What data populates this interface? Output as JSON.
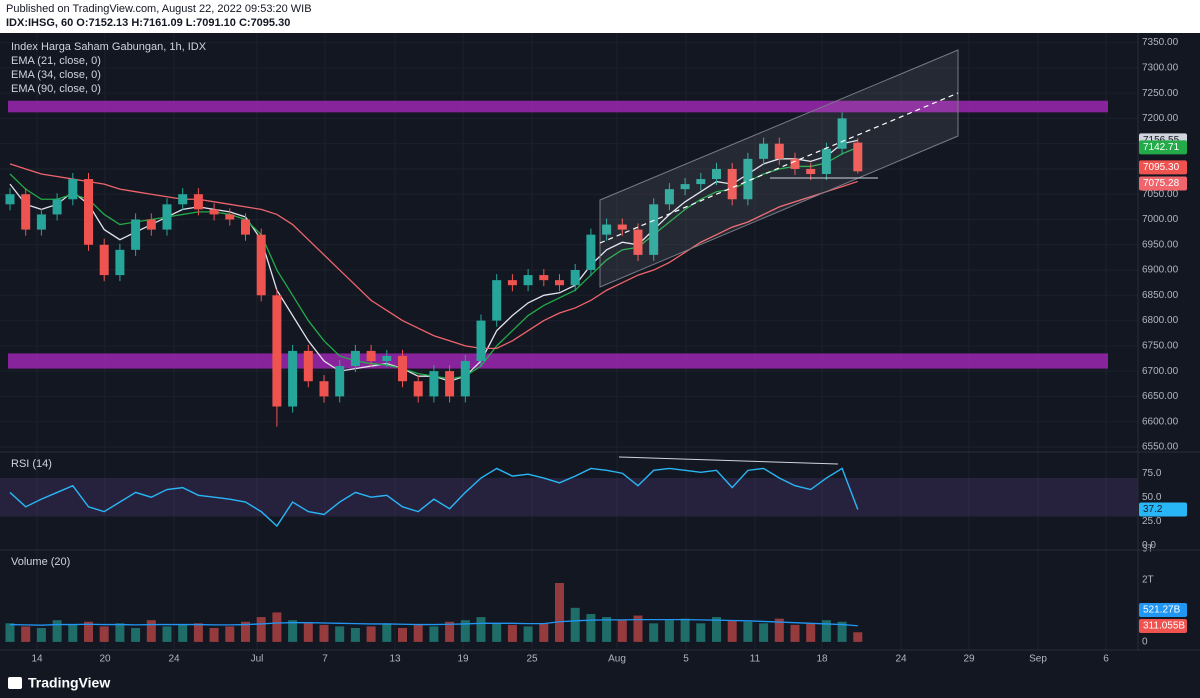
{
  "header": {
    "published": "Published on TradingView.com, August 22, 2022 09:53:20 WIB",
    "symbol_line": "IDX:IHSG, 60 O:7152.13 H:7161.09 L:7091.10 C:7095.30"
  },
  "time_axis": {
    "labels": [
      "14",
      "20",
      "24",
      "Jul",
      "7",
      "13",
      "19",
      "25",
      "Aug",
      "5",
      "11",
      "18",
      "24",
      "29",
      "Sep",
      "6"
    ]
  },
  "footer": "TradingView",
  "chart_data": [
    {
      "type": "candlestick",
      "title": "Index Harga Saham Gabungan, 1h, IDX",
      "up_color": "#26a69a",
      "down_color": "#ef5350",
      "open": [
        7030,
        7050,
        6980,
        7010,
        7040,
        7080,
        6950,
        6890,
        6940,
        7000,
        6980,
        7030,
        7050,
        7020,
        7010,
        7000,
        6970,
        6850,
        6630,
        6740,
        6680,
        6650,
        6710,
        6740,
        6720,
        6730,
        6680,
        6650,
        6700,
        6650,
        6720,
        6800,
        6880,
        6870,
        6890,
        6880,
        6870,
        6900,
        6970,
        6990,
        6980,
        6930,
        7030,
        7060,
        7070,
        7080,
        7100,
        7040,
        7120,
        7150,
        7120,
        7100,
        7090,
        7140,
        7152.13
      ],
      "high": [
        7062,
        7062,
        7022,
        7052,
        7092,
        7092,
        6962,
        6952,
        7012,
        7012,
        7042,
        7062,
        7062,
        7032,
        7022,
        7012,
        6982,
        6862,
        6752,
        6752,
        6692,
        6722,
        6752,
        6752,
        6742,
        6742,
        6692,
        6712,
        6712,
        6732,
        6812,
        6892,
        6892,
        6902,
        6902,
        6892,
        6912,
        6982,
        7002,
        7002,
        6992,
        7042,
        7072,
        7082,
        7092,
        7112,
        7112,
        7132,
        7162,
        7162,
        7132,
        7112,
        7152,
        7212,
        7161.09
      ],
      "low": [
        7018,
        6968,
        6968,
        6998,
        7028,
        6938,
        6878,
        6878,
        6928,
        6968,
        6968,
        7018,
        7008,
        6998,
        6988,
        6958,
        6838,
        6590,
        6618,
        6668,
        6638,
        6638,
        6698,
        6708,
        6708,
        6668,
        6638,
        6638,
        6638,
        6638,
        6708,
        6788,
        6858,
        6858,
        6868,
        6858,
        6858,
        6888,
        6958,
        6968,
        6918,
        6918,
        7018,
        7048,
        7058,
        7068,
        7028,
        7028,
        7108,
        7108,
        7088,
        7078,
        7078,
        7128,
        7091.1
      ],
      "close": [
        7050,
        6980,
        7010,
        7040,
        7080,
        6950,
        6890,
        6940,
        7000,
        6980,
        7030,
        7050,
        7020,
        7010,
        7000,
        6970,
        6850,
        6630,
        6740,
        6680,
        6650,
        6710,
        6740,
        6720,
        6730,
        6680,
        6650,
        6700,
        6650,
        6720,
        6800,
        6880,
        6870,
        6890,
        6880,
        6870,
        6900,
        6970,
        6990,
        6980,
        6930,
        7030,
        7060,
        7070,
        7080,
        7100,
        7040,
        7120,
        7150,
        7120,
        7100,
        7090,
        7140,
        7200,
        7095.3
      ],
      "close_label": "7095.30",
      "series": [
        {
          "name": "EMA (21, close, 0)",
          "color": "#e0e3eb",
          "values": [
            7070,
            7030,
            7020,
            7030,
            7055,
            7030,
            6980,
            6960,
            6975,
            6990,
            7005,
            7020,
            7025,
            7020,
            7015,
            7005,
            6960,
            6860,
            6810,
            6760,
            6720,
            6700,
            6705,
            6710,
            6715,
            6705,
            6690,
            6690,
            6680,
            6690,
            6720,
            6780,
            6810,
            6835,
            6850,
            6855,
            6870,
            6910,
            6940,
            6955,
            6950,
            6980,
            7010,
            7035,
            7055,
            7075,
            7070,
            7090,
            7110,
            7120,
            7120,
            7115,
            7125,
            7150,
            7156.55
          ]
        },
        {
          "name": "EMA (34, close, 0)",
          "color": "#22ab48",
          "values": [
            7090,
            7060,
            7040,
            7040,
            7050,
            7040,
            7010,
            6990,
            6995,
            7000,
            7005,
            7010,
            7015,
            7015,
            7010,
            7000,
            6970,
            6900,
            6850,
            6800,
            6760,
            6730,
            6720,
            6715,
            6712,
            6705,
            6695,
            6690,
            6685,
            6690,
            6710,
            6750,
            6780,
            6810,
            6830,
            6845,
            6860,
            6890,
            6920,
            6940,
            6945,
            6970,
            6995,
            7020,
            7040,
            7055,
            7060,
            7075,
            7090,
            7100,
            7105,
            7105,
            7112,
            7130,
            7142.71
          ]
        },
        {
          "name": "EMA (90, close, 0)",
          "color": "#f0646c",
          "values": [
            7110,
            7100,
            7090,
            7085,
            7080,
            7075,
            7070,
            7060,
            7055,
            7050,
            7045,
            7040,
            7040,
            7035,
            7030,
            7025,
            7020,
            7010,
            6990,
            6960,
            6930,
            6900,
            6870,
            6840,
            6820,
            6800,
            6785,
            6770,
            6760,
            6750,
            6745,
            6745,
            6760,
            6780,
            6800,
            6815,
            6825,
            6840,
            6860,
            6875,
            6890,
            6900,
            6915,
            6935,
            6955,
            6970,
            6985,
            6995,
            7010,
            7025,
            7035,
            7045,
            7055,
            7065,
            7075.28
          ]
        }
      ],
      "zones": [
        [
          7212,
          7235
        ],
        [
          6705,
          6735
        ]
      ],
      "zone_color": "#9c27b0",
      "ylim": [
        6540,
        7365
      ],
      "yticks": [
        {
          "value": 7350,
          "label": "7350.00"
        },
        {
          "value": 7300,
          "label": "7300.00"
        },
        {
          "value": 7250,
          "label": "7250.00"
        },
        {
          "value": 7200,
          "label": "7200.00"
        },
        {
          "value": 7150,
          "label": "7150.00"
        },
        {
          "value": 7100,
          "label": "7100.00"
        },
        {
          "value": 7050,
          "label": "7050.00"
        },
        {
          "value": 7000,
          "label": "7000.00"
        },
        {
          "value": 6950,
          "label": "6950.00"
        },
        {
          "value": 6900,
          "label": "6900.00"
        },
        {
          "value": 6850,
          "label": "6850.00"
        },
        {
          "value": 6800,
          "label": "6800.00"
        },
        {
          "value": 6750,
          "label": "6750.00"
        },
        {
          "value": 6700,
          "label": "6700.00"
        },
        {
          "value": 6650,
          "label": "6650.00"
        },
        {
          "value": 6600,
          "label": "6600.00"
        },
        {
          "value": 6550,
          "label": "6550.00"
        }
      ]
    },
    {
      "type": "line",
      "title": "RSI (14)",
      "color": "#29b6f6",
      "values": [
        55,
        40,
        48,
        55,
        62,
        40,
        35,
        45,
        55,
        50,
        58,
        60,
        52,
        50,
        48,
        45,
        35,
        20,
        45,
        35,
        32,
        45,
        55,
        50,
        52,
        40,
        35,
        48,
        38,
        55,
        70,
        80,
        72,
        74,
        70,
        65,
        72,
        80,
        78,
        75,
        62,
        78,
        80,
        78,
        76,
        78,
        60,
        78,
        80,
        70,
        62,
        58,
        70,
        80,
        37.2
      ],
      "band": [
        30,
        70
      ],
      "ylim": [
        -5,
        94
      ],
      "yticks": [
        {
          "value": 75,
          "label": "75.0"
        },
        {
          "value": 50,
          "label": "50.0"
        },
        {
          "value": 25,
          "label": "25.0"
        },
        {
          "value": 0,
          "label": "0.0"
        }
      ]
    },
    {
      "type": "bar",
      "title": "Volume (20)",
      "values": [
        600,
        500,
        450,
        700,
        550,
        650,
        500,
        600,
        450,
        700,
        500,
        550,
        600,
        450,
        500,
        650,
        800,
        950,
        700,
        600,
        550,
        500,
        450,
        500,
        600,
        450,
        550,
        500,
        650,
        700,
        800,
        600,
        550,
        500,
        600,
        1900,
        1100,
        900,
        800,
        700,
        850,
        600,
        700,
        750,
        600,
        800,
        700,
        650,
        600,
        750,
        550,
        600,
        700,
        650,
        311.055
      ],
      "value_label": "311.055B",
      "ma": {
        "color": "#2196f3",
        "values": [
          560,
          550,
          540,
          560,
          560,
          570,
          560,
          560,
          550,
          560,
          560,
          560,
          560,
          550,
          550,
          560,
          580,
          610,
          620,
          620,
          610,
          600,
          590,
          580,
          580,
          570,
          560,
          560,
          570,
          580,
          600,
          600,
          600,
          590,
          590,
          650,
          680,
          700,
          710,
          710,
          720,
          720,
          720,
          720,
          710,
          700,
          690,
          680,
          660,
          640,
          620,
          600,
          580,
          560,
          521.27
        ],
        "value_label": "521.27B"
      },
      "ylim": [
        -100,
        3030
      ],
      "yticks": [
        {
          "value": 3000,
          "label": "3T"
        },
        {
          "value": 2000,
          "label": "2T"
        },
        0
      ]
    }
  ]
}
